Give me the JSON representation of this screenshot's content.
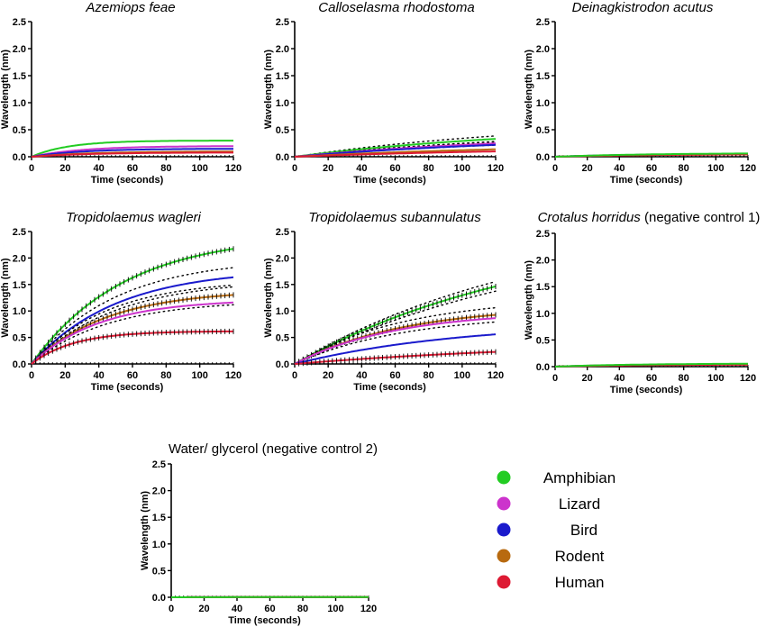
{
  "series_colors": {
    "Amphibian": "#22cc22",
    "Lizard": "#cc33cc",
    "Bird": "#1a1acc",
    "Rodent": "#b86a10",
    "Human": "#dd1a33"
  },
  "legend": {
    "items": [
      {
        "name": "Amphibian",
        "color": "#22cc22"
      },
      {
        "name": "Lizard",
        "color": "#cc33cc"
      },
      {
        "name": "Bird",
        "color": "#1a1acc"
      },
      {
        "name": "Rodent",
        "color": "#b86a10"
      },
      {
        "name": "Human",
        "color": "#dd1a33"
      }
    ]
  },
  "chart_data": [
    {
      "type": "line",
      "title": "Azemiops feae",
      "title_italic_part": "Azemiops feae",
      "title_plain_part": "",
      "xlabel": "Time (seconds)",
      "ylabel": "Wavelength (nm)",
      "xlim": [
        0,
        120
      ],
      "ylim": [
        0,
        2.5
      ],
      "xticks": [
        0,
        20,
        40,
        60,
        80,
        100,
        120
      ],
      "yticks": [
        0.0,
        0.5,
        1.0,
        1.5,
        2.0,
        2.5
      ],
      "series": [
        {
          "name": "Amphibian",
          "plateau": 0.3,
          "tau": 22,
          "ci": 0
        },
        {
          "name": "Lizard",
          "plateau": 0.2,
          "tau": 30,
          "ci": 0
        },
        {
          "name": "Bird",
          "plateau": 0.15,
          "tau": 30,
          "ci": 0
        },
        {
          "name": "Rodent",
          "plateau": 0.1,
          "tau": 35,
          "ci": 0
        },
        {
          "name": "Human",
          "plateau": 0.08,
          "tau": 35,
          "ci": 0
        }
      ]
    },
    {
      "type": "line",
      "title": "Calloselasma rhodostoma",
      "title_italic_part": "Calloselasma rhodostoma",
      "title_plain_part": "",
      "xlabel": "Time (seconds)",
      "ylabel": "Wavelength (nm)",
      "xlim": [
        0,
        120
      ],
      "ylim": [
        0,
        2.5
      ],
      "xticks": [
        0,
        20,
        40,
        60,
        80,
        100,
        120
      ],
      "yticks": [
        0.0,
        0.5,
        1.0,
        1.5,
        2.0,
        2.5
      ],
      "series": [
        {
          "name": "Amphibian",
          "plateau": 0.6,
          "tau": 150,
          "ci": 0.05
        },
        {
          "name": "Lizard",
          "plateau": 0.45,
          "tau": 150,
          "ci": 0.03
        },
        {
          "name": "Bird",
          "plateau": 0.4,
          "tau": 150,
          "ci": 0
        },
        {
          "name": "Rodent",
          "plateau": 0.25,
          "tau": 150,
          "ci": 0
        },
        {
          "name": "Human",
          "plateau": 0.18,
          "tau": 150,
          "ci": 0
        }
      ]
    },
    {
      "type": "line",
      "title": "Deinagkistrodon acutus",
      "title_italic_part": "Deinagkistrodon acutus",
      "title_plain_part": "",
      "xlabel": "Time (seconds)",
      "ylabel": "Wavelength (nm)",
      "xlim": [
        0,
        120
      ],
      "ylim": [
        0,
        2.5
      ],
      "xticks": [
        0,
        20,
        40,
        60,
        80,
        100,
        120
      ],
      "yticks": [
        0.0,
        0.5,
        1.0,
        1.5,
        2.0,
        2.5
      ],
      "series": [
        {
          "name": "Lizard",
          "plateau": 0.06,
          "tau": 60,
          "ci": 0
        },
        {
          "name": "Bird",
          "plateau": 0.06,
          "tau": 60,
          "ci": 0
        },
        {
          "name": "Rodent",
          "plateau": 0.05,
          "tau": 60,
          "ci": 0
        },
        {
          "name": "Human",
          "plateau": 0.05,
          "tau": 60,
          "ci": 0
        },
        {
          "name": "Amphibian",
          "plateau": 0.07,
          "tau": 60,
          "ci": 0
        }
      ]
    },
    {
      "type": "line",
      "title": "Tropidolaemus wagleri",
      "title_italic_part": "Tropidolaemus wagleri",
      "title_plain_part": "",
      "xlabel": "Time (seconds)",
      "ylabel": "Wavelength (nm)",
      "xlim": [
        0,
        120
      ],
      "ylim": [
        0,
        2.5
      ],
      "xticks": [
        0,
        20,
        40,
        60,
        80,
        100,
        120
      ],
      "yticks": [
        0.0,
        0.5,
        1.0,
        1.5,
        2.0,
        2.5
      ],
      "series": [
        {
          "name": "Amphibian",
          "plateau": 2.45,
          "tau": 55,
          "ci": 0,
          "marks": true
        },
        {
          "name": "Bird",
          "plateau": 1.8,
          "tau": 50,
          "ci": 0.1
        },
        {
          "name": "Rodent",
          "plateau": 1.4,
          "tau": 45,
          "ci": 0.1,
          "marks": true
        },
        {
          "name": "Lizard",
          "plateau": 1.22,
          "tau": 40,
          "ci": 0
        },
        {
          "name": "Human",
          "plateau": 0.62,
          "tau": 25,
          "ci": 0,
          "marks": true
        }
      ]
    },
    {
      "type": "line",
      "title": "Tropidolaemus subannulatus",
      "title_italic_part": "Tropidolaemus subannulatus",
      "title_plain_part": "",
      "xlabel": "Time (seconds)",
      "ylabel": "Wavelength (nm)",
      "xlim": [
        0,
        120
      ],
      "ylim": [
        0,
        2.5
      ],
      "xticks": [
        0,
        20,
        40,
        60,
        80,
        100,
        120
      ],
      "yticks": [
        0.0,
        0.5,
        1.0,
        1.5,
        2.0,
        2.5
      ],
      "series": [
        {
          "name": "Amphibian",
          "plateau": 2.6,
          "tau": 145,
          "ci": 0.08,
          "marks": true
        },
        {
          "name": "Rodent",
          "plateau": 1.1,
          "tau": 65,
          "ci": 0.08,
          "marks": true
        },
        {
          "name": "Lizard",
          "plateau": 1.0,
          "tau": 60,
          "ci": 0
        },
        {
          "name": "Bird",
          "plateau": 0.8,
          "tau": 100,
          "ci": 0
        },
        {
          "name": "Human",
          "plateau": 0.45,
          "tau": 170,
          "ci": 0,
          "marks": true
        }
      ]
    },
    {
      "type": "line",
      "title": "Crotalus horridus (negative control 1)",
      "title_italic_part": "Crotalus horridus",
      "title_plain_part": " (negative control 1)",
      "xlabel": "Time (seconds)",
      "ylabel": "Wavelength (nm)",
      "xlim": [
        0,
        120
      ],
      "ylim": [
        0,
        2.5
      ],
      "xticks": [
        0,
        20,
        40,
        60,
        80,
        100,
        120
      ],
      "yticks": [
        0.0,
        0.5,
        1.0,
        1.5,
        2.0,
        2.5
      ],
      "series": [
        {
          "name": "Lizard",
          "plateau": 0.05,
          "tau": 50,
          "ci": 0
        },
        {
          "name": "Bird",
          "plateau": 0.05,
          "tau": 50,
          "ci": 0
        },
        {
          "name": "Rodent",
          "plateau": 0.05,
          "tau": 50,
          "ci": 0
        },
        {
          "name": "Human",
          "plateau": 0.04,
          "tau": 50,
          "ci": 0
        },
        {
          "name": "Amphibian",
          "plateau": 0.06,
          "tau": 50,
          "ci": 0
        }
      ]
    },
    {
      "type": "line",
      "title": "Water/ glycerol (negative control 2)",
      "title_italic_part": "",
      "title_plain_part": "Water/ glycerol (negative control 2)",
      "xlabel": "Time (seconds)",
      "ylabel": "Wavelength (nm)",
      "xlim": [
        0,
        120
      ],
      "ylim": [
        0,
        2.5
      ],
      "xticks": [
        0,
        20,
        40,
        60,
        80,
        100,
        120
      ],
      "yticks": [
        0.0,
        0.5,
        1.0,
        1.5,
        2.0,
        2.5
      ],
      "series": [
        {
          "name": "Lizard",
          "plateau": 0.005,
          "tau": 50,
          "ci": 0
        },
        {
          "name": "Bird",
          "plateau": 0.005,
          "tau": 50,
          "ci": 0
        },
        {
          "name": "Rodent",
          "plateau": 0.005,
          "tau": 50,
          "ci": 0
        },
        {
          "name": "Human",
          "plateau": 0.005,
          "tau": 50,
          "ci": 0
        },
        {
          "name": "Amphibian",
          "plateau": 0.005,
          "tau": 50,
          "ci": 0
        }
      ]
    }
  ]
}
